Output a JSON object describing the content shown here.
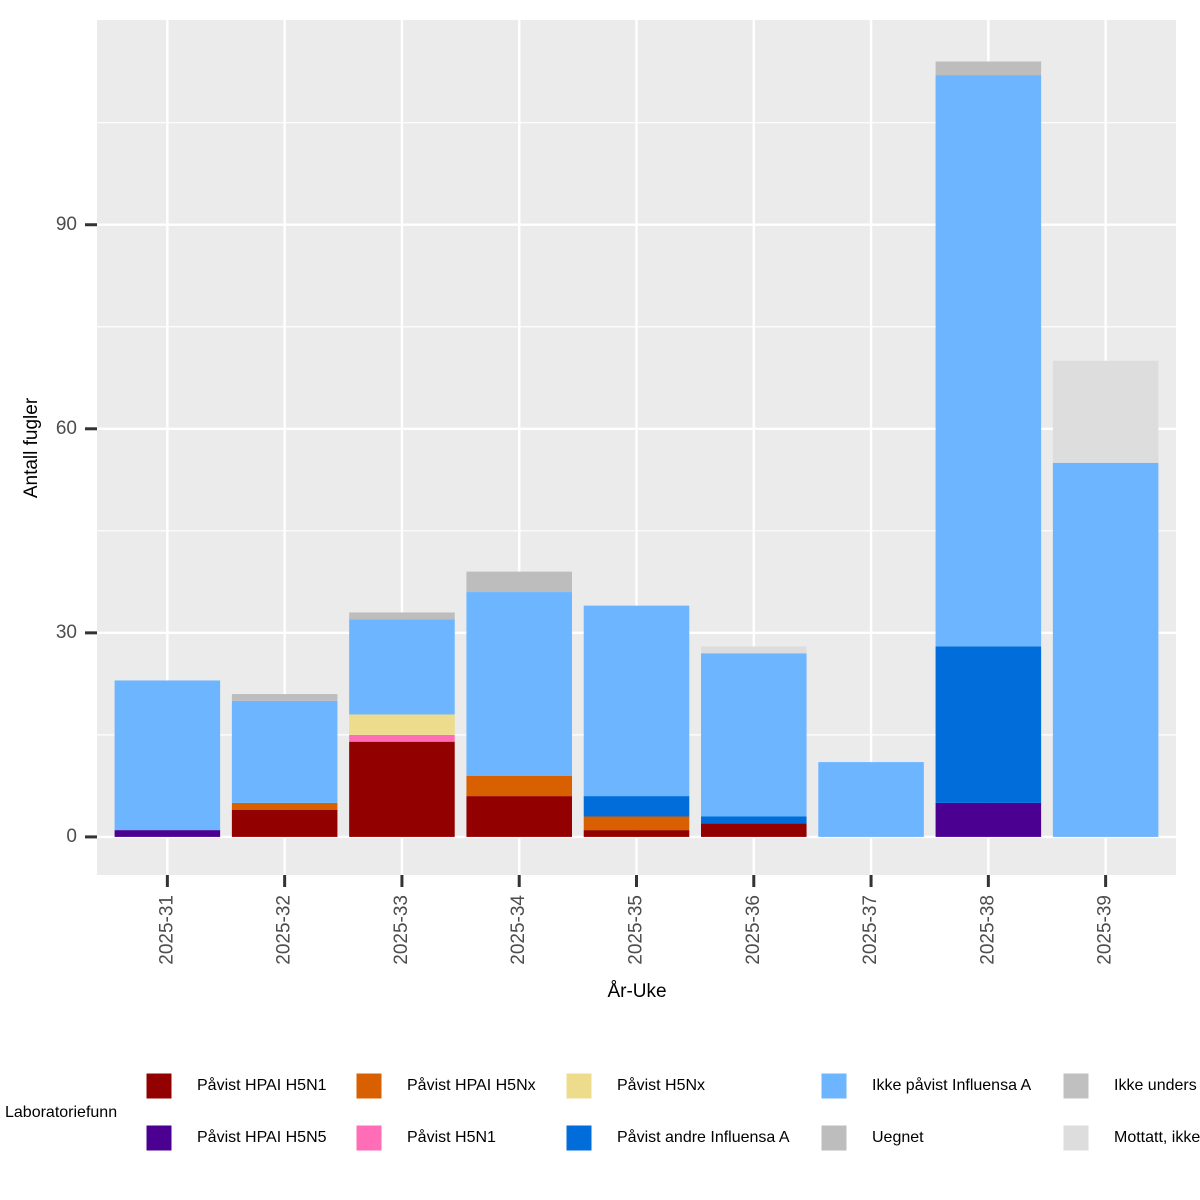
{
  "chart_data": {
    "type": "stacked_bar",
    "x_label": "År-Uke",
    "y_label": "Antall fugler",
    "legend_title": "Laboratoriefunn",
    "categories": [
      "2025-31",
      "2025-32",
      "2025-33",
      "2025-34",
      "2025-35",
      "2025-36",
      "2025-37",
      "2025-38",
      "2025-39"
    ],
    "series": [
      {
        "name": "Påvist HPAI H5N1",
        "color": "#930000",
        "values": [
          0,
          4,
          14,
          6,
          1,
          2,
          0,
          0,
          0
        ]
      },
      {
        "name": "Påvist HPAI H5N5",
        "color": "#4B0092",
        "values": [
          1,
          0,
          0,
          0,
          0,
          0,
          0,
          5,
          0
        ]
      },
      {
        "name": "Påvist HPAI H5Nx",
        "color": "#D96000",
        "values": [
          0,
          1,
          0,
          3,
          2,
          0,
          0,
          0,
          0
        ]
      },
      {
        "name": "Påvist H5N1",
        "color": "#FF6DB6",
        "values": [
          0,
          0,
          1,
          0,
          0,
          0,
          0,
          0,
          0
        ]
      },
      {
        "name": "Påvist H5Nx",
        "color": "#EDDC8C",
        "values": [
          0,
          0,
          3,
          0,
          0,
          0,
          0,
          0,
          0
        ]
      },
      {
        "name": "Påvist andre Influensa A",
        "color": "#006DDB",
        "values": [
          0,
          0,
          0,
          0,
          3,
          1,
          0,
          23,
          0
        ]
      },
      {
        "name": "Ikke påvist Influensa A",
        "color": "#6DB6FF",
        "values": [
          22,
          15,
          14,
          27,
          28,
          24,
          11,
          84,
          55
        ]
      },
      {
        "name": "Uegnet",
        "color": "#BDBDBD",
        "values": [
          0,
          1,
          1,
          3,
          0,
          0,
          0,
          2,
          0
        ]
      },
      {
        "name": "Ikke unders",
        "color": "#C0C0C0",
        "values": [
          0,
          0,
          0,
          0,
          0,
          0,
          0,
          0,
          0
        ]
      },
      {
        "name": "Mottatt, ikke",
        "color": "#DDDDDD",
        "values": [
          0,
          0,
          0,
          0,
          0,
          1,
          0,
          0,
          15
        ]
      }
    ],
    "ylim": [
      -5.6,
      120.1
    ],
    "yticks": [
      0,
      30,
      60,
      90
    ],
    "y_minor_grid": [
      15,
      45,
      75,
      105
    ],
    "grid": true
  }
}
